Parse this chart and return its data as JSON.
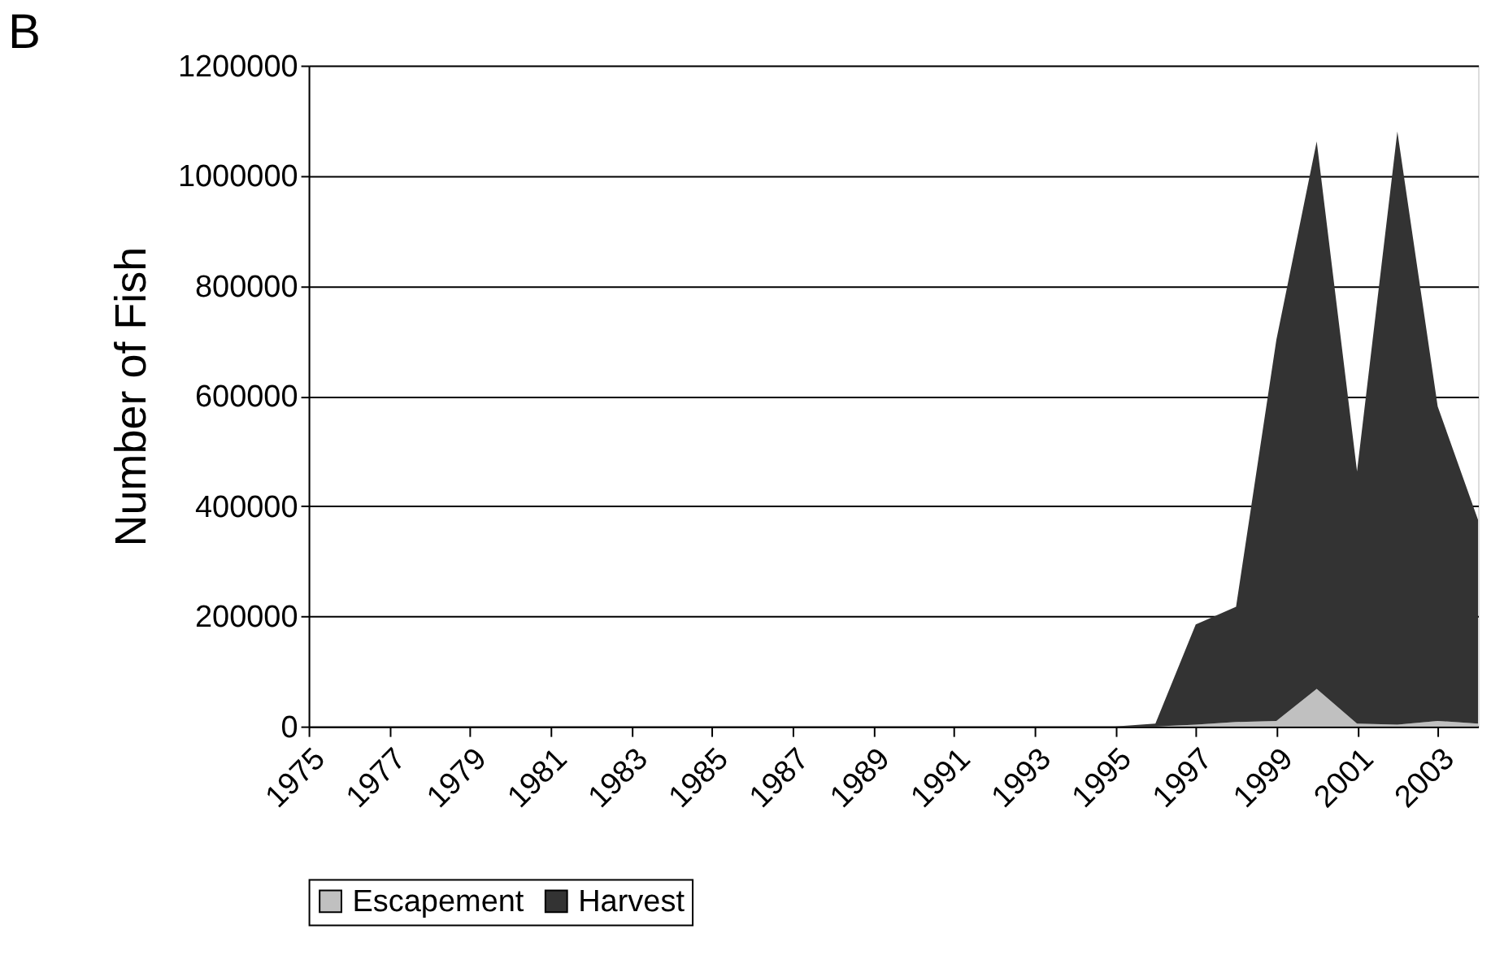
{
  "chart_data": {
    "type": "area",
    "title": "B",
    "ylabel": "Number of Fish",
    "categories": [
      "1975",
      null,
      "1977",
      null,
      "1979",
      null,
      "1981",
      null,
      "1983",
      null,
      "1985",
      null,
      "1987",
      null,
      "1989",
      null,
      "1991",
      null,
      "1993",
      null,
      "1995",
      null,
      "1997",
      null,
      "1999",
      null,
      "2001",
      null,
      "2003",
      null
    ],
    "stacked": true,
    "series": [
      {
        "name": "Escapement",
        "color": "#c0c0c0",
        "values": [
          0,
          0,
          0,
          0,
          0,
          0,
          0,
          0,
          0,
          0,
          0,
          0,
          0,
          0,
          0,
          0,
          0,
          0,
          0,
          0,
          0,
          0,
          3000,
          8000,
          10000,
          68000,
          5000,
          3000,
          10000,
          5000
        ]
      },
      {
        "name": "Harvest",
        "color": "#333333",
        "values": [
          0,
          0,
          0,
          0,
          0,
          0,
          0,
          0,
          0,
          0,
          0,
          0,
          0,
          0,
          0,
          0,
          0,
          0,
          0,
          0,
          0,
          5000,
          182000,
          209000,
          692000,
          994000,
          458000,
          1077000,
          571000,
          370000
        ]
      }
    ],
    "ylim": [
      0,
      1200000
    ],
    "yticks": [
      0,
      200000,
      400000,
      600000,
      800000,
      1000000,
      1200000
    ],
    "grid": "y",
    "legend": "bottom"
  }
}
